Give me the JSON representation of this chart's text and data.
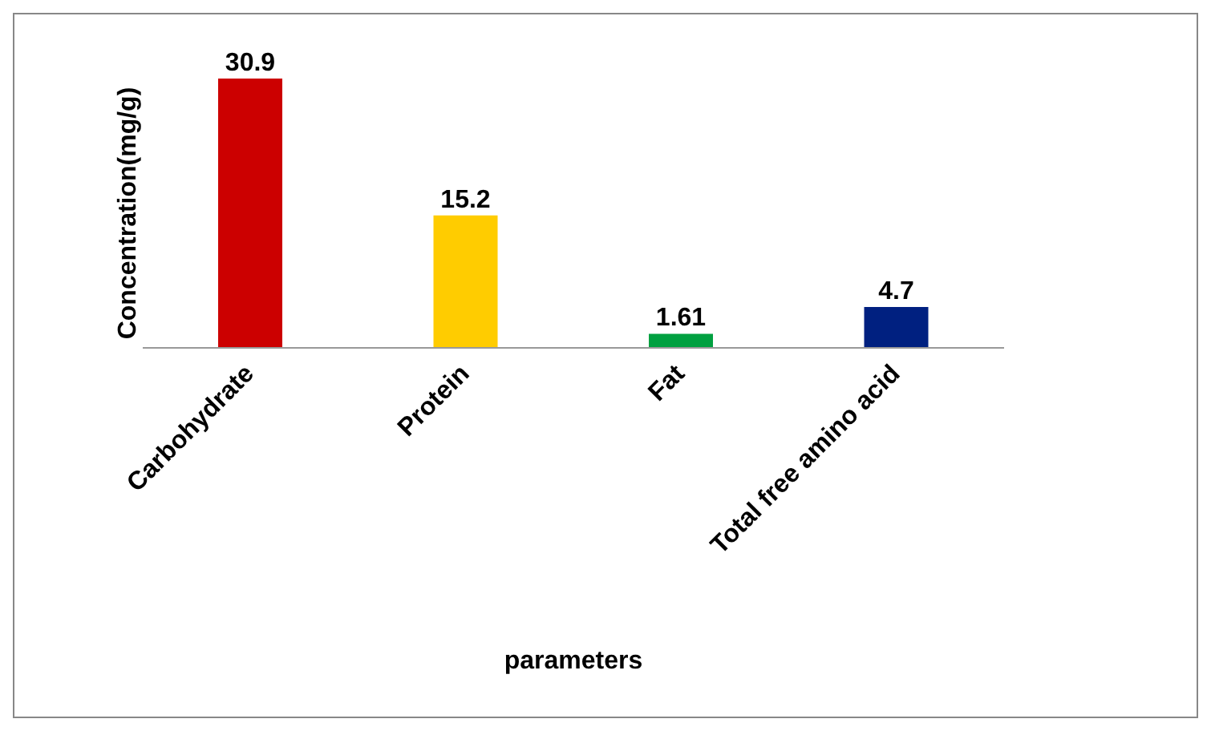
{
  "chart_data": {
    "type": "bar",
    "xlabel": "parameters",
    "ylabel": "Concentration(mg/g)",
    "categories": [
      "Carbohydrate",
      "Protein",
      "Fat",
      "Total free amino acid"
    ],
    "values": [
      30.9,
      15.2,
      1.61,
      4.7
    ],
    "colors": [
      "#cc0000",
      "#ffcc00",
      "#00a040",
      "#002080"
    ],
    "data_labels": true
  }
}
